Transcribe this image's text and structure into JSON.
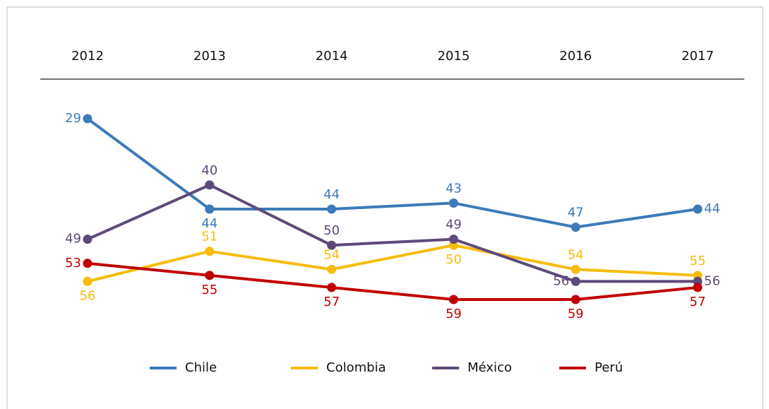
{
  "chart_data": {
    "type": "line",
    "x": [
      2012,
      2013,
      2014,
      2015,
      2016,
      2017
    ],
    "ylim": [
      29,
      59
    ],
    "y_reversed": true,
    "series": [
      {
        "name": "Chile",
        "color": "#3d7ab8",
        "values": [
          29,
          44,
          44,
          43,
          47,
          44
        ]
      },
      {
        "name": "Colombia",
        "color": "#f7bc0c",
        "values": [
          56,
          51,
          54,
          50,
          54,
          55
        ]
      },
      {
        "name": "México",
        "color": "#5e4a7a",
        "values": [
          49,
          40,
          50,
          49,
          56,
          56
        ]
      },
      {
        "name": "Perú",
        "color": "#c00000",
        "values": [
          53,
          55,
          57,
          59,
          59,
          57
        ]
      }
    ],
    "legend": "bottom"
  }
}
